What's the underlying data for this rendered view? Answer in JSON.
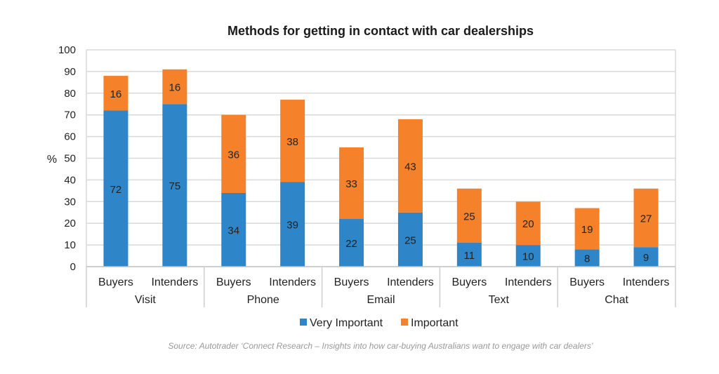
{
  "chart_data": {
    "type": "bar",
    "stacked": true,
    "title": "Methods for getting in contact with car dealerships",
    "ylabel": "%",
    "ylim": [
      0,
      100
    ],
    "yticks": [
      0,
      10,
      20,
      30,
      40,
      50,
      60,
      70,
      80,
      90,
      100
    ],
    "grid": true,
    "groups": [
      "Visit",
      "Phone",
      "Email",
      "Text",
      "Chat"
    ],
    "categories": [
      "Buyers",
      "Intenders",
      "Buyers",
      "Intenders",
      "Buyers",
      "Intenders",
      "Buyers",
      "Intenders",
      "Buyers",
      "Intenders"
    ],
    "series": [
      {
        "name": "Very Important",
        "color": "#2e86c8",
        "values": [
          72,
          75,
          34,
          39,
          22,
          25,
          11,
          10,
          8,
          9
        ]
      },
      {
        "name": "Important",
        "color": "#f5822a",
        "values": [
          16,
          16,
          36,
          38,
          33,
          43,
          25,
          20,
          19,
          27
        ]
      }
    ],
    "legend": "bottom",
    "source": "Source: Autotrader ‘Connect Research – Insights into how car-buying Australians want to engage with car dealers’"
  }
}
